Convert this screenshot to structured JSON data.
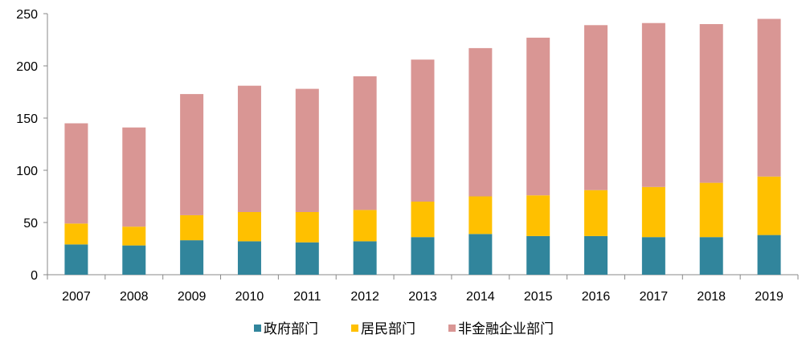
{
  "chart_data": {
    "type": "bar",
    "stacked": true,
    "title": "",
    "xlabel": "",
    "ylabel": "",
    "categories": [
      "2007",
      "2008",
      "2009",
      "2010",
      "2011",
      "2012",
      "2013",
      "2014",
      "2015",
      "2016",
      "2017",
      "2018",
      "2019"
    ],
    "series": [
      {
        "name": "政府部门",
        "color": "#31859C",
        "values": [
          29,
          28,
          33,
          32,
          31,
          32,
          36,
          39,
          37,
          37,
          36,
          36,
          38
        ]
      },
      {
        "name": "居民部门",
        "color": "#FFC000",
        "values": [
          20,
          18,
          24,
          28,
          29,
          30,
          34,
          36,
          39,
          44,
          48,
          52,
          56
        ]
      },
      {
        "name": "非金融企业部门",
        "color": "#D99694",
        "values": [
          96,
          95,
          116,
          121,
          118,
          128,
          136,
          142,
          151,
          158,
          157,
          152,
          151
        ]
      }
    ],
    "ylim": [
      0,
      250
    ],
    "yticks": [
      "0",
      "50",
      "100",
      "150",
      "200",
      "250"
    ],
    "grid": false,
    "legend": "bottom"
  }
}
